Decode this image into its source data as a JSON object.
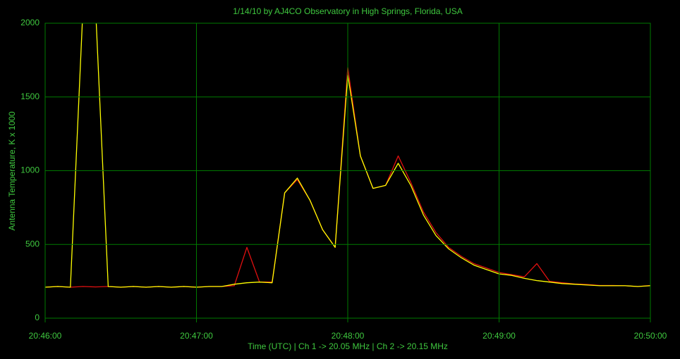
{
  "chart_data": {
    "type": "line",
    "title": "1/14/10  by  AJ4CO Observatory  in  High Springs, Florida, USA",
    "x_label": "Time (UTC)  |  Ch 1 -> 20.05 MHz  |  Ch 2 -> 20.15 MHz",
    "y_label": "Antenna Temperature, K x 1000",
    "x": [
      "20:46:00",
      "20:46:05",
      "20:46:10",
      "20:46:15",
      "20:46:20",
      "20:46:25",
      "20:46:30",
      "20:46:35",
      "20:46:40",
      "20:46:45",
      "20:46:50",
      "20:46:55",
      "20:47:00",
      "20:47:05",
      "20:47:10",
      "20:47:15",
      "20:47:20",
      "20:47:25",
      "20:47:30",
      "20:47:35",
      "20:47:40",
      "20:47:45",
      "20:47:50",
      "20:47:55",
      "20:48:00",
      "20:48:05",
      "20:48:10",
      "20:48:15",
      "20:48:20",
      "20:48:25",
      "20:48:30",
      "20:48:35",
      "20:48:40",
      "20:48:45",
      "20:48:50",
      "20:48:55",
      "20:49:00",
      "20:49:05",
      "20:49:10",
      "20:49:15",
      "20:49:20",
      "20:49:25",
      "20:49:30",
      "20:49:35",
      "20:49:40",
      "20:49:45",
      "20:49:50",
      "20:49:55",
      "20:50:00"
    ],
    "series": [
      {
        "color": "#e01010",
        "values": [
          210,
          215,
          210,
          215,
          212,
          215,
          210,
          215,
          210,
          215,
          210,
          215,
          210,
          215,
          215,
          220,
          480,
          245,
          245,
          850,
          940,
          800,
          600,
          480,
          1700,
          1100,
          880,
          900,
          1100,
          920,
          720,
          580,
          480,
          420,
          370,
          340,
          310,
          295,
          280,
          370,
          250,
          240,
          232,
          228,
          222,
          222,
          220,
          215,
          222
        ]
      },
      {
        "color": "#ffff00",
        "values": [
          210,
          215,
          210,
          2100,
          2100,
          215,
          210,
          215,
          210,
          215,
          210,
          215,
          210,
          215,
          215,
          230,
          240,
          245,
          240,
          850,
          950,
          800,
          600,
          480,
          1650,
          1100,
          880,
          900,
          1050,
          900,
          700,
          560,
          470,
          410,
          360,
          330,
          300,
          290,
          270,
          255,
          245,
          235,
          230,
          225,
          220,
          220,
          220,
          215,
          220
        ]
      }
    ],
    "xlim": [
      "20:46:00",
      "20:50:00"
    ],
    "xticks": [
      "20:46:00",
      "20:47:00",
      "20:48:00",
      "20:49:00",
      "20:50:00"
    ],
    "ylim": [
      0,
      2000
    ],
    "yticks": [
      0,
      500,
      1000,
      1500,
      2000
    ],
    "grid": true
  }
}
